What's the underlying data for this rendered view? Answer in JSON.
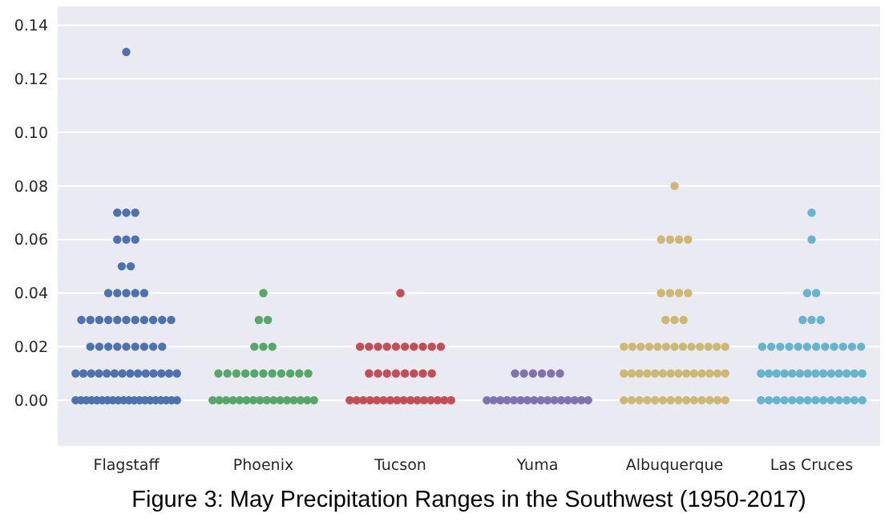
{
  "chart_data": {
    "type": "scatter",
    "title": "Figure 3: May Precipitation Ranges in the Southwest (1950-2017)",
    "categories": [
      "Flagstaff",
      "Phoenix",
      "Tucson",
      "Yuma",
      "Albuquerque",
      "Las Cruces"
    ],
    "ylim": [
      -0.017,
      0.147
    ],
    "yticks": [
      {
        "value": 0,
        "label": "0.00"
      },
      {
        "value": 0.02,
        "label": "0.02"
      },
      {
        "value": 0.04,
        "label": "0.04"
      },
      {
        "value": 0.06,
        "label": "0.06"
      },
      {
        "value": 0.08,
        "label": "0.08"
      },
      {
        "value": 0.1,
        "label": "0.10"
      },
      {
        "value": 0.12,
        "label": "0.12"
      },
      {
        "value": 0.14,
        "label": "0.14"
      }
    ],
    "grid": "y",
    "marker": "circle",
    "series": [
      {
        "color": "#4c72b0",
        "x": [
          "Flagstaff",
          "Flagstaff",
          "Flagstaff",
          "Flagstaff",
          "Flagstaff",
          "Flagstaff",
          "Flagstaff",
          "Flagstaff",
          "Flagstaff",
          "Flagstaff",
          "Flagstaff",
          "Flagstaff",
          "Flagstaff",
          "Flagstaff",
          "Flagstaff",
          "Flagstaff",
          "Flagstaff",
          "Flagstaff",
          "Flagstaff",
          "Flagstaff",
          "Flagstaff",
          "Flagstaff",
          "Flagstaff",
          "Flagstaff",
          "Flagstaff",
          "Flagstaff",
          "Flagstaff",
          "Flagstaff",
          "Flagstaff",
          "Flagstaff",
          "Flagstaff",
          "Flagstaff",
          "Flagstaff",
          "Flagstaff",
          "Flagstaff",
          "Flagstaff",
          "Flagstaff",
          "Flagstaff",
          "Flagstaff",
          "Flagstaff",
          "Flagstaff",
          "Flagstaff",
          "Flagstaff",
          "Flagstaff",
          "Flagstaff",
          "Flagstaff",
          "Flagstaff",
          "Flagstaff",
          "Flagstaff",
          "Flagstaff",
          "Flagstaff",
          "Flagstaff",
          "Flagstaff",
          "Flagstaff",
          "Flagstaff",
          "Flagstaff",
          "Flagstaff",
          "Flagstaff",
          "Flagstaff",
          "Flagstaff",
          "Flagstaff",
          "Flagstaff",
          "Flagstaff",
          "Flagstaff",
          "Flagstaff",
          "Flagstaff",
          "Flagstaff",
          "Flagstaff"
        ],
        "values": [
          0.13,
          0.07,
          0.07,
          0.07,
          0.06,
          0.06,
          0.06,
          0.05,
          0.05,
          0.04,
          0.04,
          0.04,
          0.04,
          0.04,
          0.03,
          0.03,
          0.03,
          0.03,
          0.03,
          0.03,
          0.03,
          0.03,
          0.03,
          0.03,
          0.03,
          0.02,
          0.02,
          0.02,
          0.02,
          0.02,
          0.02,
          0.02,
          0.02,
          0.02,
          0.01,
          0.01,
          0.01,
          0.01,
          0.01,
          0.01,
          0.01,
          0.01,
          0.01,
          0.01,
          0.01,
          0.01,
          0.01,
          0.01,
          0,
          0,
          0,
          0,
          0,
          0,
          0,
          0,
          0,
          0,
          0,
          0,
          0,
          0,
          0,
          0,
          0,
          0,
          0,
          0
        ]
      },
      {
        "color": "#55a868",
        "x": [
          "Phoenix",
          "Phoenix",
          "Phoenix",
          "Phoenix",
          "Phoenix",
          "Phoenix",
          "Phoenix",
          "Phoenix",
          "Phoenix",
          "Phoenix",
          "Phoenix",
          "Phoenix",
          "Phoenix",
          "Phoenix",
          "Phoenix",
          "Phoenix",
          "Phoenix",
          "Phoenix",
          "Phoenix",
          "Phoenix",
          "Phoenix",
          "Phoenix",
          "Phoenix",
          "Phoenix",
          "Phoenix",
          "Phoenix",
          "Phoenix",
          "Phoenix",
          "Phoenix",
          "Phoenix",
          "Phoenix",
          "Phoenix",
          "Phoenix"
        ],
        "values": [
          0.04,
          0.03,
          0.03,
          0.02,
          0.02,
          0.02,
          0.01,
          0.01,
          0.01,
          0.01,
          0.01,
          0.01,
          0.01,
          0.01,
          0.01,
          0.01,
          0.01,
          0,
          0,
          0,
          0,
          0,
          0,
          0,
          0,
          0,
          0,
          0,
          0,
          0,
          0,
          0,
          0
        ]
      },
      {
        "color": "#c44e52",
        "x": [
          "Tucson",
          "Tucson",
          "Tucson",
          "Tucson",
          "Tucson",
          "Tucson",
          "Tucson",
          "Tucson",
          "Tucson",
          "Tucson",
          "Tucson",
          "Tucson",
          "Tucson",
          "Tucson",
          "Tucson",
          "Tucson",
          "Tucson",
          "Tucson",
          "Tucson",
          "Tucson",
          "Tucson",
          "Tucson",
          "Tucson",
          "Tucson",
          "Tucson",
          "Tucson",
          "Tucson",
          "Tucson",
          "Tucson",
          "Tucson",
          "Tucson",
          "Tucson",
          "Tucson",
          "Tucson",
          "Tucson"
        ],
        "values": [
          0.04,
          0.02,
          0.02,
          0.02,
          0.02,
          0.02,
          0.02,
          0.02,
          0.02,
          0.02,
          0.02,
          0.01,
          0.01,
          0.01,
          0.01,
          0.01,
          0.01,
          0.01,
          0.01,
          0,
          0,
          0,
          0,
          0,
          0,
          0,
          0,
          0,
          0,
          0,
          0,
          0,
          0,
          0,
          0
        ]
      },
      {
        "color": "#8172b2",
        "x": [
          "Yuma",
          "Yuma",
          "Yuma",
          "Yuma",
          "Yuma",
          "Yuma",
          "Yuma",
          "Yuma",
          "Yuma",
          "Yuma",
          "Yuma",
          "Yuma",
          "Yuma",
          "Yuma",
          "Yuma",
          "Yuma",
          "Yuma",
          "Yuma",
          "Yuma",
          "Yuma",
          "Yuma",
          "Yuma"
        ],
        "values": [
          0.01,
          0.01,
          0.01,
          0.01,
          0.01,
          0.01,
          0,
          0,
          0,
          0,
          0,
          0,
          0,
          0,
          0,
          0,
          0,
          0,
          0,
          0,
          0,
          0
        ]
      },
      {
        "color": "#ccb974",
        "x": [
          "Albuquerque",
          "Albuquerque",
          "Albuquerque",
          "Albuquerque",
          "Albuquerque",
          "Albuquerque",
          "Albuquerque",
          "Albuquerque",
          "Albuquerque",
          "Albuquerque",
          "Albuquerque",
          "Albuquerque",
          "Albuquerque",
          "Albuquerque",
          "Albuquerque",
          "Albuquerque",
          "Albuquerque",
          "Albuquerque",
          "Albuquerque",
          "Albuquerque",
          "Albuquerque",
          "Albuquerque",
          "Albuquerque",
          "Albuquerque",
          "Albuquerque",
          "Albuquerque",
          "Albuquerque",
          "Albuquerque",
          "Albuquerque",
          "Albuquerque",
          "Albuquerque",
          "Albuquerque",
          "Albuquerque",
          "Albuquerque",
          "Albuquerque",
          "Albuquerque",
          "Albuquerque",
          "Albuquerque",
          "Albuquerque",
          "Albuquerque",
          "Albuquerque",
          "Albuquerque",
          "Albuquerque",
          "Albuquerque",
          "Albuquerque",
          "Albuquerque",
          "Albuquerque",
          "Albuquerque",
          "Albuquerque",
          "Albuquerque",
          "Albuquerque",
          "Albuquerque",
          "Albuquerque"
        ],
        "values": [
          0.08,
          0.06,
          0.06,
          0.06,
          0.06,
          0.04,
          0.04,
          0.04,
          0.04,
          0.03,
          0.03,
          0.03,
          0.02,
          0.02,
          0.02,
          0.02,
          0.02,
          0.02,
          0.02,
          0.02,
          0.02,
          0.02,
          0.02,
          0.02,
          0.02,
          0.01,
          0.01,
          0.01,
          0.01,
          0.01,
          0.01,
          0.01,
          0.01,
          0.01,
          0.01,
          0.01,
          0.01,
          0.01,
          0.01,
          0,
          0,
          0,
          0,
          0,
          0,
          0,
          0,
          0,
          0,
          0,
          0,
          0,
          0
        ]
      },
      {
        "color": "#64b5cd",
        "x": [
          "Las Cruces",
          "Las Cruces",
          "Las Cruces",
          "Las Cruces",
          "Las Cruces",
          "Las Cruces",
          "Las Cruces",
          "Las Cruces",
          "Las Cruces",
          "Las Cruces",
          "Las Cruces",
          "Las Cruces",
          "Las Cruces",
          "Las Cruces",
          "Las Cruces",
          "Las Cruces",
          "Las Cruces",
          "Las Cruces",
          "Las Cruces",
          "Las Cruces",
          "Las Cruces",
          "Las Cruces",
          "Las Cruces",
          "Las Cruces",
          "Las Cruces",
          "Las Cruces",
          "Las Cruces",
          "Las Cruces",
          "Las Cruces",
          "Las Cruces",
          "Las Cruces",
          "Las Cruces",
          "Las Cruces",
          "Las Cruces",
          "Las Cruces",
          "Las Cruces",
          "Las Cruces",
          "Las Cruces",
          "Las Cruces",
          "Las Cruces",
          "Las Cruces",
          "Las Cruces",
          "Las Cruces",
          "Las Cruces",
          "Las Cruces",
          "Las Cruces",
          "Las Cruces"
        ],
        "values": [
          0.07,
          0.06,
          0.04,
          0.04,
          0.03,
          0.03,
          0.03,
          0.02,
          0.02,
          0.02,
          0.02,
          0.02,
          0.02,
          0.02,
          0.02,
          0.02,
          0.02,
          0.02,
          0.02,
          0.01,
          0.01,
          0.01,
          0.01,
          0.01,
          0.01,
          0.01,
          0.01,
          0.01,
          0.01,
          0.01,
          0.01,
          0.01,
          0.01,
          0,
          0,
          0,
          0,
          0,
          0,
          0,
          0,
          0,
          0,
          0,
          0,
          0,
          0
        ]
      }
    ]
  }
}
